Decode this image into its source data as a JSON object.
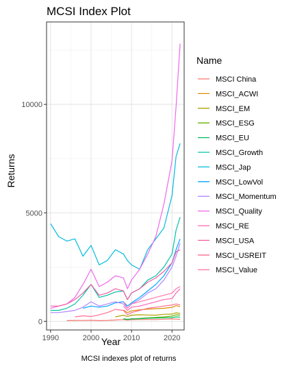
{
  "chart_data": {
    "type": "line",
    "title": "MCSI Index Plot",
    "xlabel": "Year",
    "ylabel": "Returns",
    "caption": "MCSI indexes plot of returns",
    "xlim": [
      1989,
      2023
    ],
    "ylim": [
      -400,
      13800
    ],
    "x_ticks": [
      1990,
      2000,
      2010,
      2020
    ],
    "y_ticks": [
      0,
      5000,
      10000
    ],
    "grid": true,
    "legend": {
      "title": "Name",
      "placement": "right"
    },
    "x": [
      1990,
      1992,
      1994,
      1996,
      1998,
      2000,
      2002,
      2004,
      2006,
      2008,
      2009,
      2010,
      2012,
      2014,
      2016,
      2018,
      2020,
      2021,
      2022
    ],
    "series": [
      {
        "name": "MSCI China",
        "color": "#F8766D",
        "values": [
          null,
          null,
          30,
          40,
          35,
          45,
          30,
          40,
          60,
          80,
          55,
          75,
          80,
          85,
          80,
          95,
          110,
          100,
          90
        ]
      },
      {
        "name": "MSCI_ACWI",
        "color": "#DB8E00",
        "values": [
          null,
          null,
          null,
          null,
          null,
          null,
          null,
          null,
          null,
          520,
          400,
          480,
          530,
          560,
          580,
          600,
          640,
          720,
          680
        ]
      },
      {
        "name": "MSCI_EM",
        "color": "#AEA200",
        "values": [
          null,
          null,
          null,
          null,
          null,
          null,
          null,
          null,
          200,
          280,
          220,
          280,
          300,
          290,
          280,
          320,
          330,
          390,
          360
        ]
      },
      {
        "name": "MSCI_ESG",
        "color": "#64B200",
        "values": [
          null,
          null,
          null,
          null,
          null,
          null,
          null,
          null,
          null,
          100,
          80,
          110,
          130,
          160,
          180,
          200,
          240,
          300,
          280
        ]
      },
      {
        "name": "MSCI_EU",
        "color": "#00BD5C",
        "values": [
          null,
          null,
          null,
          null,
          null,
          null,
          null,
          null,
          null,
          120,
          90,
          110,
          120,
          140,
          150,
          160,
          170,
          200,
          190
        ]
      },
      {
        "name": "MSCI_Growth",
        "color": "#00C1A7",
        "values": [
          500,
          500,
          600,
          800,
          1200,
          1700,
          1100,
          1200,
          1350,
          1400,
          1000,
          1300,
          1500,
          1900,
          2100,
          2500,
          3100,
          4200,
          4800
        ]
      },
      {
        "name": "MSCI_Jap",
        "color": "#00BADE",
        "values": [
          4500,
          3900,
          3700,
          3800,
          3000,
          3500,
          2600,
          2800,
          3300,
          3100,
          2800,
          2600,
          2400,
          3300,
          3800,
          4300,
          5800,
          7600,
          8200
        ]
      },
      {
        "name": "MSCI_LowVol",
        "color": "#00A6FF",
        "values": [
          null,
          null,
          null,
          null,
          600,
          700,
          650,
          700,
          850,
          900,
          700,
          850,
          1100,
          1400,
          1700,
          2100,
          2700,
          3300,
          3800
        ]
      },
      {
        "name": "MSCI_Momentum",
        "color": "#B385FF",
        "values": [
          400,
          400,
          450,
          500,
          650,
          900,
          700,
          800,
          900,
          800,
          600,
          800,
          1000,
          1300,
          1500,
          1900,
          2500,
          3000,
          3600
        ]
      },
      {
        "name": "MSCI_Quality",
        "color": "#EF67EB",
        "values": [
          600,
          700,
          800,
          1100,
          1700,
          2400,
          1600,
          1800,
          2100,
          2000,
          1500,
          1900,
          2400,
          3100,
          3900,
          5400,
          7400,
          9900,
          12800
        ]
      },
      {
        "name": "MSCI_RE",
        "color": "#FF63B6",
        "values": [
          null,
          null,
          null,
          null,
          null,
          null,
          null,
          null,
          null,
          700,
          500,
          650,
          700,
          800,
          900,
          1000,
          1050,
          1300,
          1500
        ]
      },
      {
        "name": "MSCI_USA",
        "color": "#EF5CA0",
        "values": [
          700,
          700,
          800,
          1000,
          1300,
          1700,
          1200,
          1300,
          1500,
          1400,
          1000,
          1300,
          1500,
          1800,
          2000,
          2300,
          2700,
          3200,
          3300
        ]
      },
      {
        "name": "MSCI_USREIT",
        "color": "#FF6C91",
        "values": [
          null,
          null,
          null,
          200,
          250,
          220,
          300,
          400,
          550,
          500,
          300,
          400,
          500,
          600,
          650,
          700,
          750,
          800,
          750
        ]
      },
      {
        "name": "MSCI_Value",
        "color": "#FF77AA",
        "values": [
          null,
          null,
          null,
          null,
          null,
          null,
          null,
          null,
          null,
          900,
          600,
          800,
          900,
          1000,
          1100,
          1200,
          1300,
          1500,
          1600
        ]
      }
    ]
  }
}
